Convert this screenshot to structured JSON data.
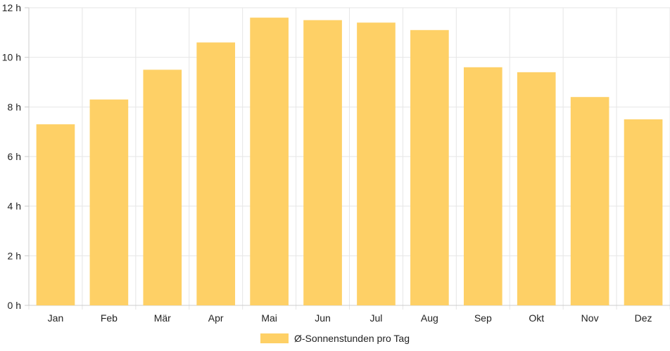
{
  "chart_data": {
    "type": "bar",
    "categories": [
      "Jan",
      "Feb",
      "Mär",
      "Apr",
      "Mai",
      "Jun",
      "Jul",
      "Aug",
      "Sep",
      "Okt",
      "Nov",
      "Dez"
    ],
    "series": [
      {
        "name": "Ø-Sonnenstunden pro Tag",
        "values": [
          7.3,
          8.3,
          9.5,
          10.6,
          11.6,
          11.5,
          11.4,
          11.1,
          9.6,
          9.4,
          8.4,
          7.5
        ],
        "color": "#fed066"
      }
    ],
    "y_ticks": [
      "0 h",
      "2 h",
      "4 h",
      "6 h",
      "8 h",
      "10 h",
      "12 h"
    ],
    "ylim": [
      0,
      12
    ],
    "grid": true,
    "legend_position": "bottom",
    "colors": {
      "grid": "#e6e6e6",
      "axis": "#cccccc",
      "text": "#222222"
    }
  }
}
